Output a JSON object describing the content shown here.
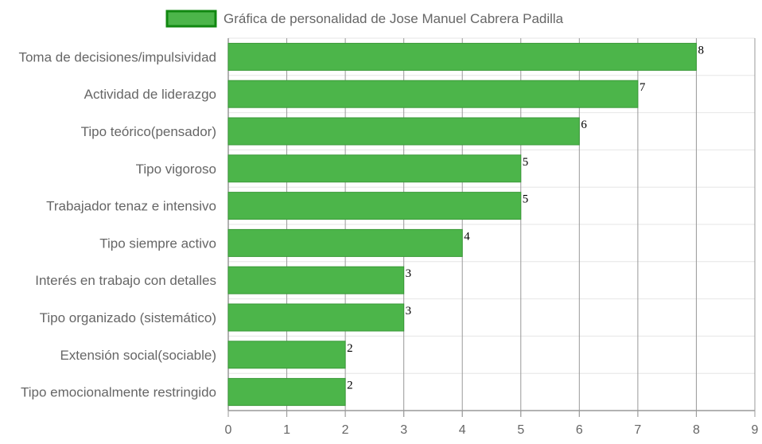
{
  "chart_data": {
    "type": "bar",
    "orientation": "horizontal",
    "legend": {
      "label": "Gráfica de personalidad de Jose Manuel Cabrera Padilla",
      "position": "top"
    },
    "categories": [
      "Toma de decisiones/impulsividad",
      "Actividad de liderazgo",
      "Tipo teórico(pensador)",
      "Tipo vigoroso",
      "Trabajador tenaz e intensivo",
      "Tipo siempre activo",
      "Interés en trabajo con detalles",
      "Tipo organizado (sistemático)",
      "Extensión social(sociable)",
      "Tipo emocionalmente restringido"
    ],
    "values": [
      8,
      7,
      6,
      5,
      5,
      4,
      3,
      3,
      2,
      2
    ],
    "value_labels": [
      "8",
      "7",
      "6",
      "5",
      "5",
      "4",
      "3",
      "3",
      "2",
      "2"
    ],
    "x_ticks": [
      "0",
      "1",
      "2",
      "3",
      "4",
      "5",
      "6",
      "7",
      "8",
      "9"
    ],
    "xlim": [
      0,
      9
    ],
    "grid": true,
    "colors": {
      "bar_fill": "#4cb54a",
      "bar_border": "#3a9a38",
      "legend_fill": "#4cb54a",
      "legend_border": "#118811",
      "grid_vertical": "#999999",
      "grid_horizontal": "#e6e6e6",
      "axis": "#999999"
    }
  }
}
